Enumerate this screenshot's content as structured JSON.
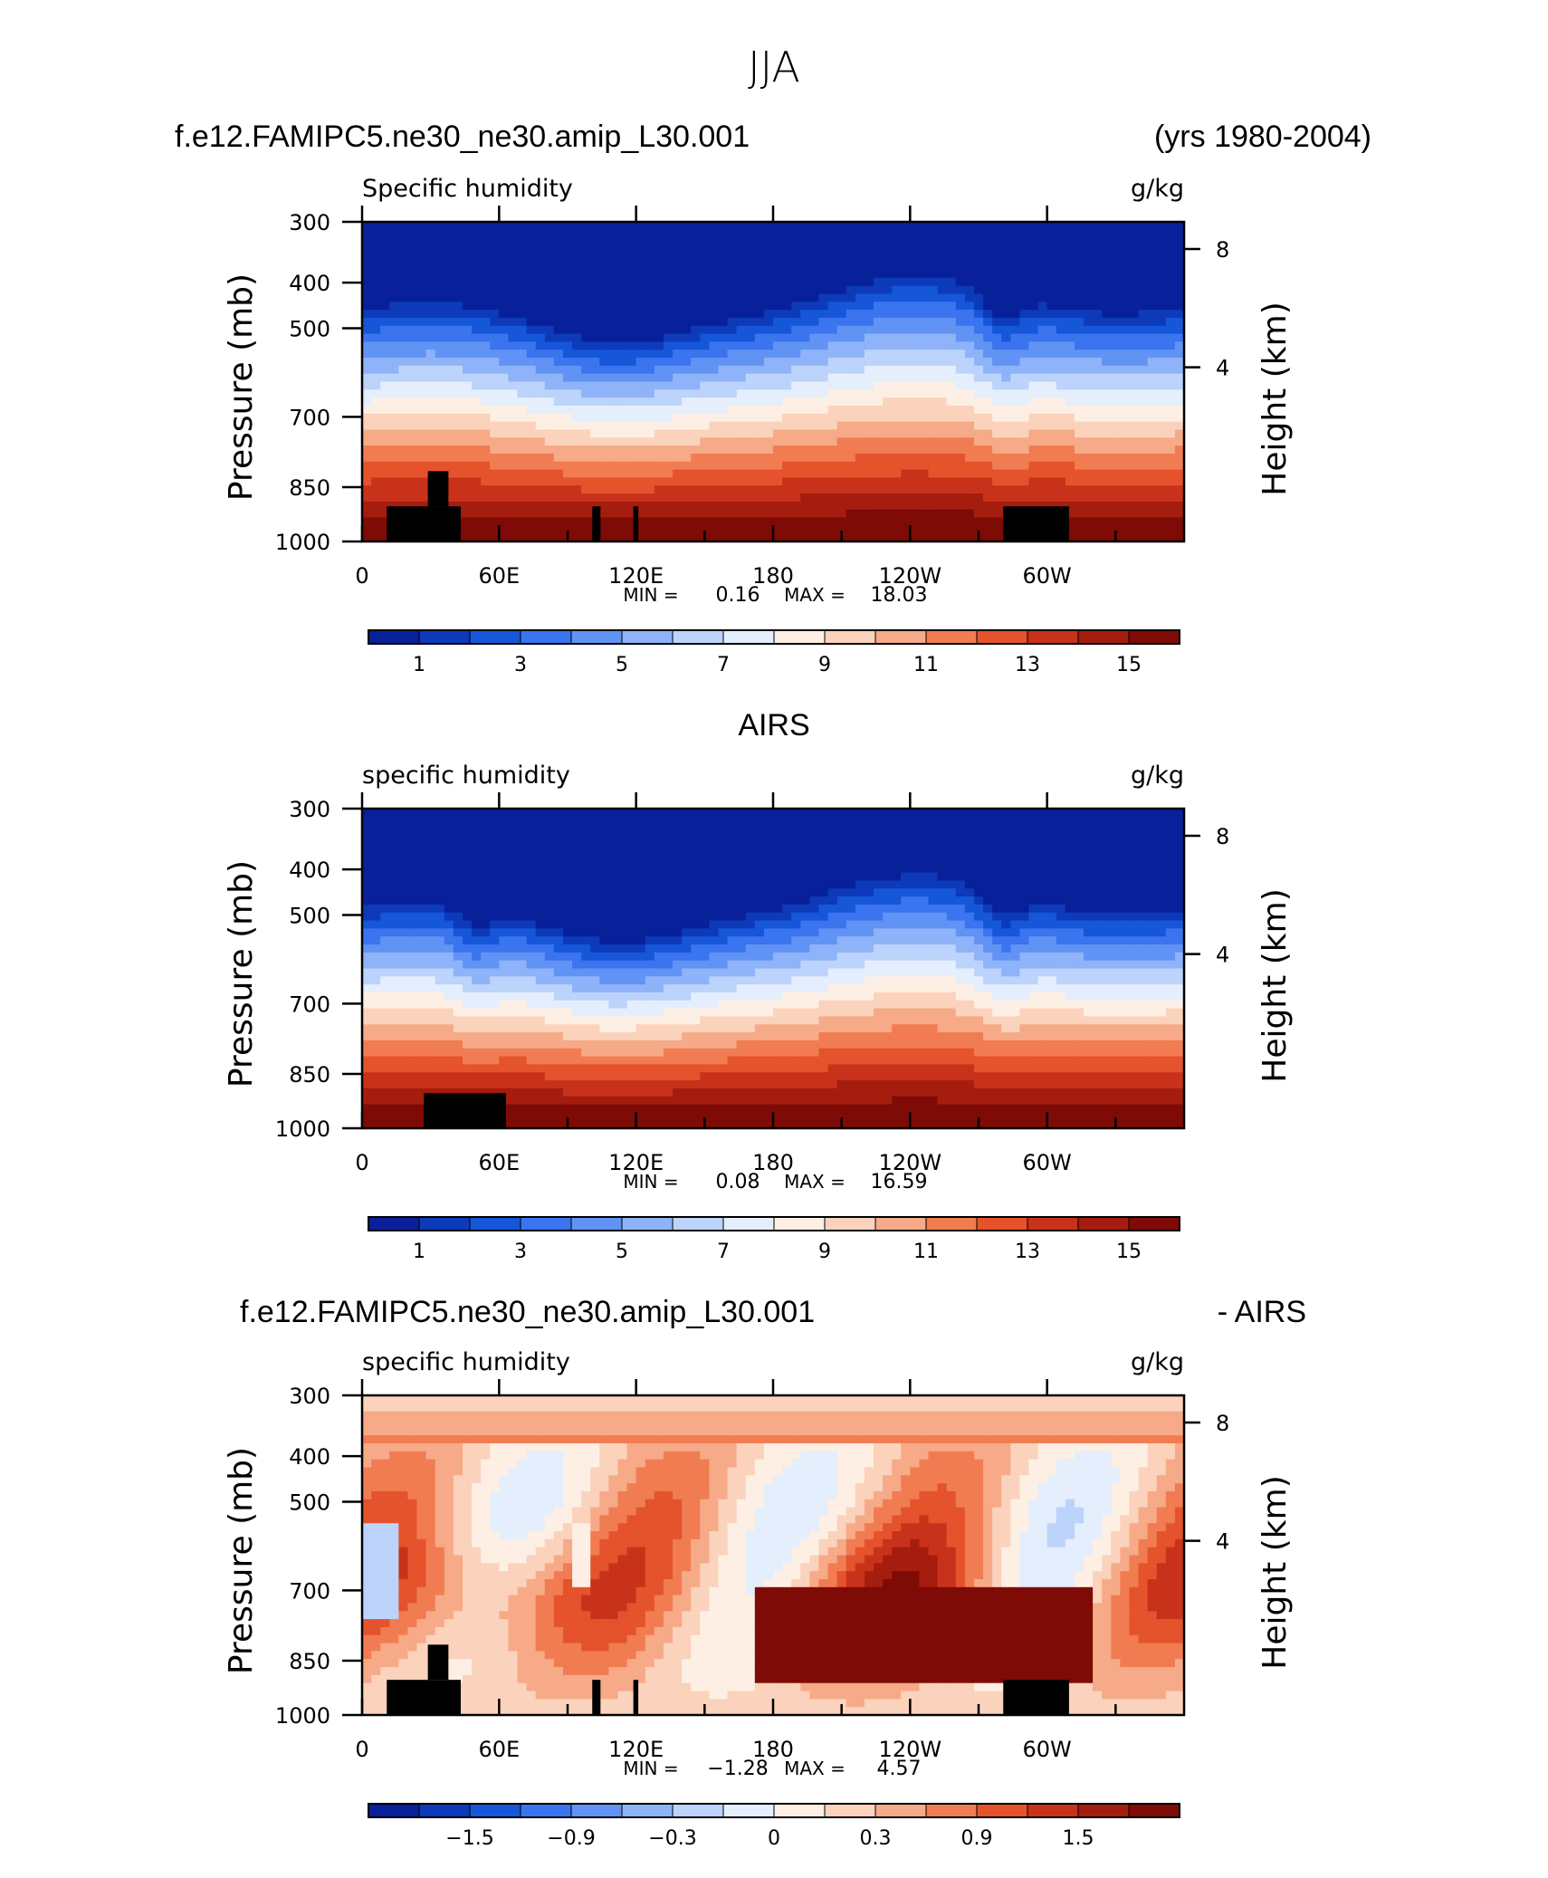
{
  "figure": {
    "title": "JJA",
    "model_case": "f.e12.FAMIPC5.ne30_ne30.amip_L30.001",
    "years": "(yrs 1980-2004)",
    "airs_title": "AIRS",
    "diff_case": "f.e12.FAMIPC5.ne30_ne30.amip_L30.001",
    "diff_suffix": "- AIRS"
  },
  "chart_data": [
    {
      "type": "contour",
      "title": "f.e12.FAMIPC5.ne30_ne30.amip_L30.001",
      "left_label": "Specific humidity",
      "units": "g/kg",
      "ylabel": "Pressure (mb)",
      "ylabel_right": "Height (km)",
      "x_ticks": [
        "0",
        "60E",
        "120E",
        "180",
        "120W",
        "60W"
      ],
      "y_ticks": [
        "300",
        "400",
        "500",
        "700",
        "850",
        "1000"
      ],
      "y_ticks_right": [
        "8",
        "4"
      ],
      "min_label": "MIN =",
      "min": "0.16",
      "max_label": "MAX =",
      "max": "18.03",
      "colorbar": {
        "labels": [
          "1",
          "3",
          "5",
          "7",
          "9",
          "11",
          "13",
          "15"
        ],
        "colors": [
          "#08209a",
          "#0c3ab8",
          "#1656d8",
          "#3a74ee",
          "#6193f4",
          "#8eb3f8",
          "#bcd3fb",
          "#e4eefc",
          "#fdefe3",
          "#fbd2bc",
          "#f6aa88",
          "#f17c52",
          "#e4532c",
          "#c9321a",
          "#a51d0f",
          "#7e0b06"
        ]
      }
    },
    {
      "type": "contour",
      "title": "AIRS",
      "left_label": "specific humidity",
      "units": "g/kg",
      "ylabel": "Pressure (mb)",
      "ylabel_right": "Height (km)",
      "x_ticks": [
        "0",
        "60E",
        "120E",
        "180",
        "120W",
        "60W"
      ],
      "y_ticks": [
        "300",
        "400",
        "500",
        "700",
        "850",
        "1000"
      ],
      "y_ticks_right": [
        "8",
        "4"
      ],
      "min_label": "MIN =",
      "min": "0.08",
      "max_label": "MAX =",
      "max": "16.59",
      "colorbar": {
        "labels": [
          "1",
          "3",
          "5",
          "7",
          "9",
          "11",
          "13",
          "15"
        ],
        "colors": [
          "#08209a",
          "#0c3ab8",
          "#1656d8",
          "#3a74ee",
          "#6193f4",
          "#8eb3f8",
          "#bcd3fb",
          "#e4eefc",
          "#fdefe3",
          "#fbd2bc",
          "#f6aa88",
          "#f17c52",
          "#e4532c",
          "#c9321a",
          "#a51d0f",
          "#7e0b06"
        ]
      }
    },
    {
      "type": "contour",
      "title": "f.e12.FAMIPC5.ne30_ne30.amip_L30.001 - AIRS",
      "left_label": "specific humidity",
      "units": "g/kg",
      "ylabel": "Pressure (mb)",
      "ylabel_right": "Height (km)",
      "x_ticks": [
        "0",
        "60E",
        "120E",
        "180",
        "120W",
        "60W"
      ],
      "y_ticks": [
        "300",
        "400",
        "500",
        "700",
        "850",
        "1000"
      ],
      "y_ticks_right": [
        "8",
        "4"
      ],
      "min_label": "MIN =",
      "min": "−1.28",
      "max_label": "MAX =",
      "max": "4.57",
      "colorbar": {
        "labels": [
          "−1.5",
          "−0.9",
          "−0.3",
          "0",
          "0.3",
          "0.9",
          "1.5"
        ],
        "colors": [
          "#08209a",
          "#0c3ab8",
          "#1656d8",
          "#3a74ee",
          "#6193f4",
          "#8eb3f8",
          "#bcd3fb",
          "#e4eefc",
          "#fdefe3",
          "#fbd2bc",
          "#f6aa88",
          "#f17c52",
          "#e4532c",
          "#c9321a",
          "#a51d0f",
          "#7e0b06"
        ]
      }
    }
  ]
}
